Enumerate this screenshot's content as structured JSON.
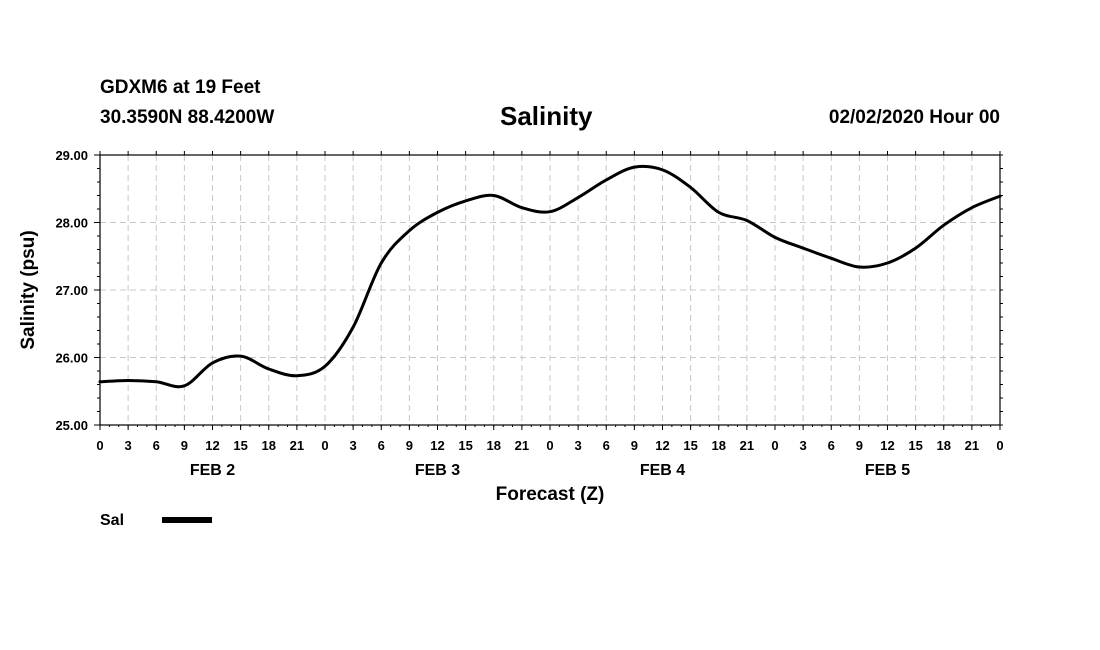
{
  "header": {
    "station": "GDXM6 at 19 Feet",
    "coords": "30.3590N 88.4200W",
    "title": "Salinity",
    "issued": "02/02/2020 Hour 00"
  },
  "chart_data": {
    "type": "line",
    "title": "Salinity",
    "xlabel": "Forecast (Z)",
    "ylabel": "Salinity (psu)",
    "ylim": [
      25,
      29
    ],
    "yticks": [
      "25.00",
      "26.00",
      "27.00",
      "28.00",
      "29.00"
    ],
    "xlim": [
      0,
      96
    ],
    "x_unit": "hours from 02/02/2020 00Z",
    "xtick_labels": [
      "0",
      "3",
      "6",
      "9",
      "12",
      "15",
      "18",
      "21",
      "0",
      "3",
      "6",
      "9",
      "12",
      "15",
      "18",
      "21",
      "0",
      "3",
      "6",
      "9",
      "12",
      "15",
      "18",
      "21",
      "0",
      "3",
      "6",
      "9",
      "12",
      "15",
      "18",
      "21",
      "0"
    ],
    "day_labels": [
      {
        "label": "FEB 2",
        "hour": 12
      },
      {
        "label": "FEB 3",
        "hour": 36
      },
      {
        "label": "FEB 4",
        "hour": 60
      },
      {
        "label": "FEB 5",
        "hour": 84
      }
    ],
    "grid": true,
    "legend_position": "bottom-left",
    "series": [
      {
        "name": "Sal",
        "color": "#000000",
        "x": [
          0,
          3,
          6,
          9,
          12,
          15,
          18,
          21,
          24,
          27,
          30,
          33,
          36,
          39,
          42,
          45,
          48,
          51,
          54,
          57,
          60,
          63,
          66,
          69,
          72,
          75,
          78,
          81,
          84,
          87,
          90,
          93,
          96
        ],
        "values": [
          25.64,
          25.66,
          25.64,
          25.58,
          25.92,
          26.02,
          25.83,
          25.73,
          25.87,
          26.45,
          27.4,
          27.88,
          28.15,
          28.32,
          28.4,
          28.22,
          28.16,
          28.37,
          28.63,
          28.82,
          28.78,
          28.52,
          28.15,
          28.03,
          27.78,
          27.62,
          27.47,
          27.34,
          27.4,
          27.62,
          27.96,
          28.22,
          28.39
        ]
      }
    ]
  }
}
